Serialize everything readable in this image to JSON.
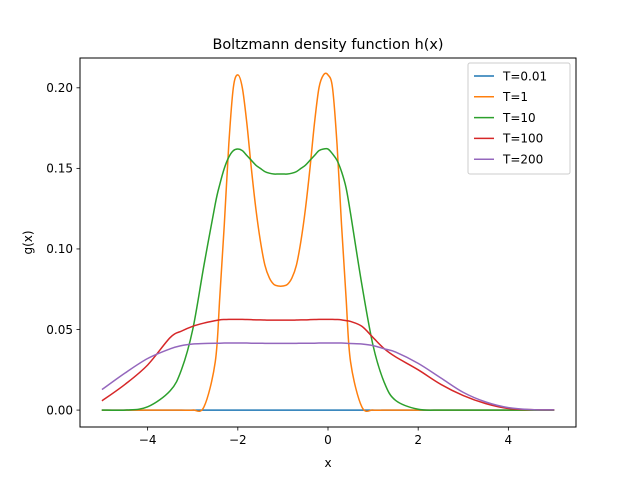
{
  "chart_data": {
    "type": "line",
    "title": "Boltzmann density function h(x)",
    "xlabel": "x",
    "ylabel": "g(x)",
    "xlim": [
      -5.5,
      5.5
    ],
    "ylim": [
      -0.0105,
      0.2185
    ],
    "xticks": [
      -4,
      -2,
      0,
      2,
      4
    ],
    "xtick_labels": [
      "−4",
      "−2",
      "0",
      "2",
      "4"
    ],
    "yticks": [
      0.0,
      0.05,
      0.1,
      0.15,
      0.2
    ],
    "ytick_labels": [
      "0.00",
      "0.05",
      "0.10",
      "0.15",
      "0.20"
    ],
    "grid": false,
    "legend_position": "top-right",
    "x": [
      -5.0,
      -4.5,
      -4.0,
      -3.5,
      -3.25,
      -3.0,
      -2.75,
      -2.5,
      -2.4,
      -2.3,
      -2.2,
      -2.1,
      -2.0,
      -1.9,
      -1.8,
      -1.7,
      -1.6,
      -1.5,
      -1.4,
      -1.3,
      -1.2,
      -1.1,
      -1.0,
      -0.9,
      -0.8,
      -0.7,
      -0.6,
      -0.5,
      -0.4,
      -0.3,
      -0.2,
      -0.1,
      0.0,
      0.1,
      0.2,
      0.3,
      0.4,
      0.5,
      0.75,
      1.0,
      1.25,
      1.5,
      2.0,
      2.5,
      3.0,
      3.5,
      4.0,
      4.5,
      5.0
    ],
    "series": [
      {
        "name": "T=0.01",
        "color": "#1f77b4",
        "values": [
          0,
          0,
          0,
          0,
          0,
          0,
          0,
          0,
          0,
          0,
          0,
          0,
          0,
          0,
          0,
          0,
          0,
          0,
          0,
          0,
          0,
          0,
          0,
          0,
          0,
          0,
          0,
          0,
          0,
          0,
          0,
          0,
          0,
          0,
          0,
          0,
          0,
          0,
          0,
          0,
          0,
          0,
          0,
          0,
          0,
          0,
          0,
          0,
          0
        ]
      },
      {
        "name": "T=1",
        "color": "#ff7f0e",
        "values": [
          0,
          0,
          0,
          0,
          0,
          0,
          0.002,
          0.03,
          0.07,
          0.115,
          0.165,
          0.2,
          0.208,
          0.2,
          0.178,
          0.15,
          0.125,
          0.105,
          0.09,
          0.082,
          0.078,
          0.077,
          0.077,
          0.078,
          0.082,
          0.09,
          0.105,
          0.125,
          0.15,
          0.178,
          0.2,
          0.208,
          0.208,
          0.2,
          0.165,
          0.115,
          0.07,
          0.03,
          0.002,
          0,
          0,
          0,
          0,
          0,
          0,
          0,
          0,
          0,
          0
        ]
      },
      {
        "name": "T=10",
        "color": "#2ca02c",
        "values": [
          0,
          0,
          0.002,
          0.012,
          0.025,
          0.05,
          0.09,
          0.128,
          0.14,
          0.15,
          0.157,
          0.161,
          0.162,
          0.161,
          0.158,
          0.155,
          0.152,
          0.15,
          0.148,
          0.147,
          0.1465,
          0.1465,
          0.1465,
          0.1465,
          0.147,
          0.148,
          0.15,
          0.152,
          0.155,
          0.158,
          0.161,
          0.162,
          0.162,
          0.159,
          0.155,
          0.148,
          0.138,
          0.122,
          0.078,
          0.04,
          0.017,
          0.006,
          0.0005,
          0,
          0,
          0,
          0,
          0,
          0
        ]
      },
      {
        "name": "T=100",
        "color": "#d62728",
        "values": [
          0.006,
          0.016,
          0.028,
          0.045,
          0.049,
          0.052,
          0.054,
          0.0555,
          0.056,
          0.0562,
          0.0563,
          0.0563,
          0.0563,
          0.0563,
          0.0562,
          0.0561,
          0.056,
          0.056,
          0.0559,
          0.0558,
          0.0558,
          0.0558,
          0.0558,
          0.0558,
          0.0558,
          0.0559,
          0.056,
          0.056,
          0.0561,
          0.0562,
          0.0563,
          0.0563,
          0.0563,
          0.0563,
          0.0562,
          0.056,
          0.0555,
          0.055,
          0.052,
          0.045,
          0.038,
          0.033,
          0.025,
          0.016,
          0.009,
          0.004,
          0.001,
          0.0003,
          0.0001
        ]
      },
      {
        "name": "T=200",
        "color": "#9467bd",
        "values": [
          0.013,
          0.023,
          0.032,
          0.038,
          0.04,
          0.041,
          0.0413,
          0.0415,
          0.0415,
          0.0416,
          0.0416,
          0.0416,
          0.0416,
          0.0416,
          0.0416,
          0.0415,
          0.0415,
          0.0415,
          0.0414,
          0.0414,
          0.0414,
          0.0414,
          0.0414,
          0.0414,
          0.0414,
          0.0414,
          0.0415,
          0.0415,
          0.0415,
          0.0415,
          0.0416,
          0.0416,
          0.0416,
          0.0416,
          0.0416,
          0.0416,
          0.0415,
          0.0413,
          0.041,
          0.04,
          0.038,
          0.036,
          0.029,
          0.02,
          0.011,
          0.005,
          0.0015,
          0.0003,
          0.0001
        ]
      }
    ]
  }
}
